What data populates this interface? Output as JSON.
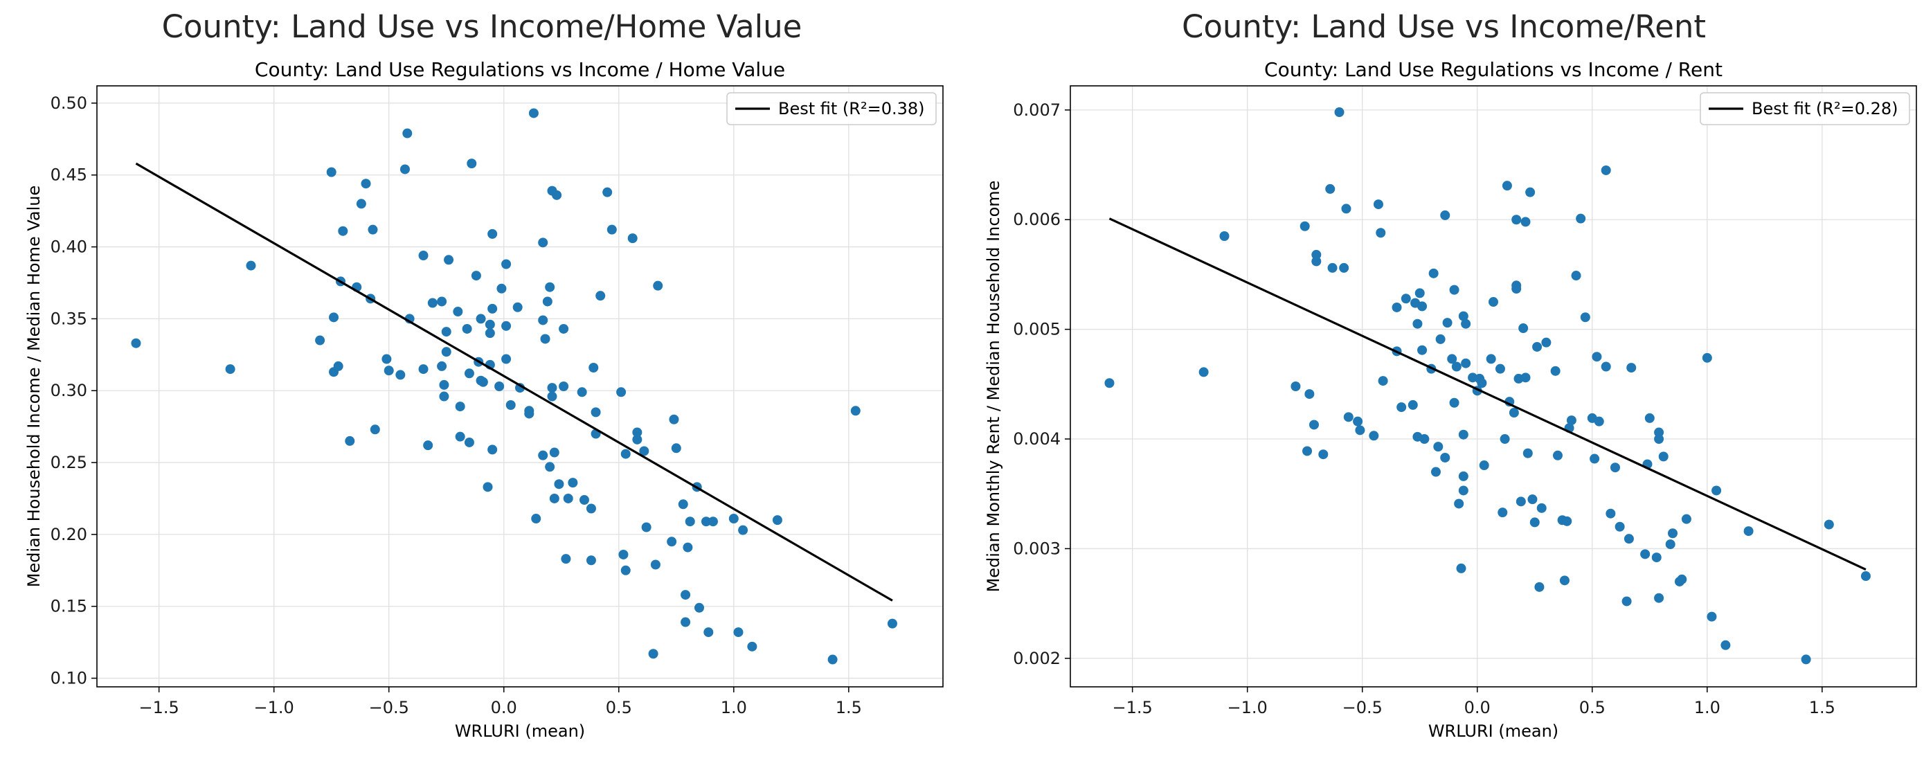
{
  "figure": {
    "suptitles": [
      "County: Land Use vs Income/Home Value",
      "County: Land Use vs Income/Rent"
    ]
  },
  "chart_data": [
    {
      "type": "scatter",
      "title": "County: Land Use Regulations vs Income / Home Value",
      "xlabel": "WRLURI (mean)",
      "ylabel": "Median Household Income / Median Home Value",
      "xlim": [
        -1.77,
        1.91
      ],
      "ylim": [
        0.094,
        0.512
      ],
      "xticks": [
        -1.5,
        -1.0,
        -0.5,
        0.0,
        0.5,
        1.0,
        1.5
      ],
      "xtick_labels": [
        "−1.5",
        "−1.0",
        "−0.5",
        "0.0",
        "0.5",
        "1.0",
        "1.5"
      ],
      "yticks": [
        0.1,
        0.15,
        0.2,
        0.25,
        0.3,
        0.35,
        0.4,
        0.45,
        0.5
      ],
      "ytick_labels": [
        "0.10",
        "0.15",
        "0.20",
        "0.25",
        "0.30",
        "0.35",
        "0.40",
        "0.45",
        "0.50"
      ],
      "grid": true,
      "legend": {
        "position": "top-right",
        "label": "Best fit (R²=0.38)"
      },
      "fit_line": {
        "x": [
          -1.6,
          1.69
        ],
        "y": [
          0.458,
          0.154
        ],
        "color": "#000000"
      },
      "marker_color": "#1f77b4",
      "points": [
        [
          -1.6,
          0.333
        ],
        [
          -1.19,
          0.315
        ],
        [
          -1.1,
          0.387
        ],
        [
          -0.8,
          0.335
        ],
        [
          -0.75,
          0.452
        ],
        [
          -0.74,
          0.351
        ],
        [
          -0.74,
          0.313
        ],
        [
          -0.72,
          0.317
        ],
        [
          -0.71,
          0.376
        ],
        [
          -0.7,
          0.411
        ],
        [
          -0.67,
          0.265
        ],
        [
          -0.64,
          0.372
        ],
        [
          -0.62,
          0.43
        ],
        [
          -0.6,
          0.444
        ],
        [
          -0.58,
          0.364
        ],
        [
          -0.57,
          0.412
        ],
        [
          -0.56,
          0.273
        ],
        [
          -0.51,
          0.322
        ],
        [
          -0.5,
          0.314
        ],
        [
          -0.45,
          0.311
        ],
        [
          -0.43,
          0.454
        ],
        [
          -0.42,
          0.479
        ],
        [
          -0.41,
          0.35
        ],
        [
          -0.35,
          0.394
        ],
        [
          -0.35,
          0.315
        ],
        [
          -0.33,
          0.262
        ],
        [
          -0.31,
          0.361
        ],
        [
          -0.27,
          0.362
        ],
        [
          -0.27,
          0.317
        ],
        [
          -0.26,
          0.304
        ],
        [
          -0.26,
          0.296
        ],
        [
          -0.25,
          0.341
        ],
        [
          -0.25,
          0.327
        ],
        [
          -0.24,
          0.391
        ],
        [
          -0.2,
          0.355
        ],
        [
          -0.19,
          0.289
        ],
        [
          -0.19,
          0.268
        ],
        [
          -0.16,
          0.343
        ],
        [
          -0.15,
          0.312
        ],
        [
          -0.15,
          0.264
        ],
        [
          -0.14,
          0.458
        ],
        [
          -0.12,
          0.38
        ],
        [
          -0.11,
          0.32
        ],
        [
          -0.1,
          0.35
        ],
        [
          -0.1,
          0.307
        ],
        [
          -0.09,
          0.306
        ],
        [
          -0.07,
          0.233
        ],
        [
          -0.06,
          0.318
        ],
        [
          -0.06,
          0.346
        ],
        [
          -0.06,
          0.34
        ],
        [
          -0.05,
          0.357
        ],
        [
          -0.05,
          0.409
        ],
        [
          -0.05,
          0.259
        ],
        [
          -0.02,
          0.303
        ],
        [
          -0.01,
          0.371
        ],
        [
          0.01,
          0.388
        ],
        [
          0.01,
          0.345
        ],
        [
          0.01,
          0.322
        ],
        [
          0.03,
          0.29
        ],
        [
          0.06,
          0.358
        ],
        [
          0.07,
          0.302
        ],
        [
          0.11,
          0.286
        ],
        [
          0.11,
          0.284
        ],
        [
          0.13,
          0.493
        ],
        [
          0.14,
          0.211
        ],
        [
          0.17,
          0.349
        ],
        [
          0.17,
          0.255
        ],
        [
          0.17,
          0.403
        ],
        [
          0.18,
          0.336
        ],
        [
          0.19,
          0.362
        ],
        [
          0.2,
          0.247
        ],
        [
          0.2,
          0.372
        ],
        [
          0.21,
          0.302
        ],
        [
          0.21,
          0.296
        ],
        [
          0.21,
          0.439
        ],
        [
          0.22,
          0.225
        ],
        [
          0.22,
          0.257
        ],
        [
          0.23,
          0.436
        ],
        [
          0.24,
          0.235
        ],
        [
          0.26,
          0.303
        ],
        [
          0.26,
          0.343
        ],
        [
          0.27,
          0.183
        ],
        [
          0.28,
          0.225
        ],
        [
          0.3,
          0.236
        ],
        [
          0.34,
          0.299
        ],
        [
          0.35,
          0.224
        ],
        [
          0.38,
          0.182
        ],
        [
          0.38,
          0.218
        ],
        [
          0.39,
          0.316
        ],
        [
          0.4,
          0.285
        ],
        [
          0.4,
          0.27
        ],
        [
          0.42,
          0.366
        ],
        [
          0.45,
          0.438
        ],
        [
          0.47,
          0.412
        ],
        [
          0.51,
          0.299
        ],
        [
          0.52,
          0.186
        ],
        [
          0.53,
          0.175
        ],
        [
          0.53,
          0.256
        ],
        [
          0.56,
          0.406
        ],
        [
          0.58,
          0.266
        ],
        [
          0.58,
          0.271
        ],
        [
          0.61,
          0.258
        ],
        [
          0.62,
          0.205
        ],
        [
          0.65,
          0.117
        ],
        [
          0.66,
          0.179
        ],
        [
          0.67,
          0.373
        ],
        [
          0.73,
          0.195
        ],
        [
          0.74,
          0.28
        ],
        [
          0.75,
          0.26
        ],
        [
          0.78,
          0.221
        ],
        [
          0.79,
          0.158
        ],
        [
          0.79,
          0.139
        ],
        [
          0.8,
          0.191
        ],
        [
          0.81,
          0.209
        ],
        [
          0.84,
          0.233
        ],
        [
          0.85,
          0.149
        ],
        [
          0.88,
          0.209
        ],
        [
          0.89,
          0.132
        ],
        [
          0.91,
          0.209
        ],
        [
          1.0,
          0.211
        ],
        [
          1.02,
          0.132
        ],
        [
          1.04,
          0.203
        ],
        [
          1.08,
          0.122
        ],
        [
          1.19,
          0.21
        ],
        [
          1.43,
          0.113
        ],
        [
          1.53,
          0.286
        ],
        [
          1.69,
          0.138
        ]
      ]
    },
    {
      "type": "scatter",
      "title": "County: Land Use Regulations vs Income / Rent",
      "xlabel": "WRLURI (mean)",
      "ylabel": "Median Monthly Rent / Median Household Income",
      "xlim": [
        -1.77,
        1.91
      ],
      "ylim": [
        0.00174,
        0.00722
      ],
      "xticks": [
        -1.5,
        -1.0,
        -0.5,
        0.0,
        0.5,
        1.0,
        1.5
      ],
      "xtick_labels": [
        "−1.5",
        "−1.0",
        "−0.5",
        "0.0",
        "0.5",
        "1.0",
        "1.5"
      ],
      "yticks": [
        0.002,
        0.003,
        0.004,
        0.005,
        0.006,
        0.007
      ],
      "ytick_labels": [
        "0.002",
        "0.003",
        "0.004",
        "0.005",
        "0.006",
        "0.007"
      ],
      "grid": true,
      "legend": {
        "position": "top-right",
        "label": "Best fit (R²=0.28)"
      },
      "fit_line": {
        "x": [
          -1.6,
          1.69
        ],
        "y": [
          0.00601,
          0.00281
        ],
        "color": "#000000"
      },
      "marker_color": "#1f77b4",
      "points": [
        [
          -1.6,
          0.00451
        ],
        [
          -1.19,
          0.00461
        ],
        [
          -1.1,
          0.00585
        ],
        [
          -0.79,
          0.00448
        ],
        [
          -0.75,
          0.00594
        ],
        [
          -0.74,
          0.00389
        ],
        [
          -0.73,
          0.00441
        ],
        [
          -0.71,
          0.00413
        ],
        [
          -0.7,
          0.00562
        ],
        [
          -0.7,
          0.00568
        ],
        [
          -0.67,
          0.00386
        ],
        [
          -0.64,
          0.00628
        ],
        [
          -0.63,
          0.00556
        ],
        [
          -0.6,
          0.00698
        ],
        [
          -0.58,
          0.00556
        ],
        [
          -0.57,
          0.0061
        ],
        [
          -0.56,
          0.0042
        ],
        [
          -0.52,
          0.00416
        ],
        [
          -0.51,
          0.00408
        ],
        [
          -0.45,
          0.00403
        ],
        [
          -0.43,
          0.00614
        ],
        [
          -0.42,
          0.00588
        ],
        [
          -0.41,
          0.00453
        ],
        [
          -0.35,
          0.0052
        ],
        [
          -0.35,
          0.0048
        ],
        [
          -0.33,
          0.00429
        ],
        [
          -0.31,
          0.00528
        ],
        [
          -0.28,
          0.00431
        ],
        [
          -0.27,
          0.00524
        ],
        [
          -0.26,
          0.00505
        ],
        [
          -0.26,
          0.00402
        ],
        [
          -0.25,
          0.00533
        ],
        [
          -0.24,
          0.00521
        ],
        [
          -0.24,
          0.00481
        ],
        [
          -0.23,
          0.004
        ],
        [
          -0.2,
          0.00464
        ],
        [
          -0.19,
          0.00551
        ],
        [
          -0.18,
          0.0037
        ],
        [
          -0.17,
          0.00393
        ],
        [
          -0.16,
          0.00491
        ],
        [
          -0.14,
          0.00383
        ],
        [
          -0.14,
          0.00604
        ],
        [
          -0.13,
          0.00506
        ],
        [
          -0.11,
          0.00473
        ],
        [
          -0.1,
          0.00433
        ],
        [
          -0.1,
          0.00536
        ],
        [
          -0.09,
          0.00466
        ],
        [
          -0.08,
          0.00341
        ],
        [
          -0.07,
          0.00282
        ],
        [
          -0.06,
          0.00404
        ],
        [
          -0.06,
          0.00366
        ],
        [
          -0.06,
          0.00353
        ],
        [
          -0.06,
          0.00512
        ],
        [
          -0.05,
          0.00505
        ],
        [
          -0.05,
          0.00469
        ],
        [
          -0.02,
          0.00456
        ],
        [
          0.0,
          0.00444
        ],
        [
          0.01,
          0.00455
        ],
        [
          0.02,
          0.00451
        ],
        [
          0.03,
          0.00376
        ],
        [
          0.06,
          0.00473
        ],
        [
          0.07,
          0.00525
        ],
        [
          0.1,
          0.00464
        ],
        [
          0.11,
          0.00333
        ],
        [
          0.12,
          0.004
        ],
        [
          0.13,
          0.00631
        ],
        [
          0.14,
          0.00434
        ],
        [
          0.16,
          0.00424
        ],
        [
          0.17,
          0.0054
        ],
        [
          0.17,
          0.00537
        ],
        [
          0.17,
          0.006
        ],
        [
          0.18,
          0.00455
        ],
        [
          0.19,
          0.00343
        ],
        [
          0.2,
          0.00501
        ],
        [
          0.21,
          0.00598
        ],
        [
          0.21,
          0.00456
        ],
        [
          0.22,
          0.00387
        ],
        [
          0.23,
          0.00625
        ],
        [
          0.24,
          0.00345
        ],
        [
          0.25,
          0.00324
        ],
        [
          0.26,
          0.00484
        ],
        [
          0.27,
          0.00265
        ],
        [
          0.28,
          0.00337
        ],
        [
          0.3,
          0.00488
        ],
        [
          0.34,
          0.00462
        ],
        [
          0.35,
          0.00385
        ],
        [
          0.37,
          0.00326
        ],
        [
          0.38,
          0.00271
        ],
        [
          0.39,
          0.00325
        ],
        [
          0.4,
          0.0041
        ],
        [
          0.41,
          0.00417
        ],
        [
          0.43,
          0.00549
        ],
        [
          0.45,
          0.00601
        ],
        [
          0.47,
          0.00511
        ],
        [
          0.5,
          0.00419
        ],
        [
          0.51,
          0.00382
        ],
        [
          0.52,
          0.00475
        ],
        [
          0.53,
          0.00416
        ],
        [
          0.56,
          0.00645
        ],
        [
          0.56,
          0.00466
        ],
        [
          0.58,
          0.00332
        ],
        [
          0.6,
          0.00374
        ],
        [
          0.62,
          0.0032
        ],
        [
          0.65,
          0.00252
        ],
        [
          0.66,
          0.00309
        ],
        [
          0.67,
          0.00465
        ],
        [
          0.73,
          0.00295
        ],
        [
          0.74,
          0.00377
        ],
        [
          0.75,
          0.00419
        ],
        [
          0.78,
          0.00292
        ],
        [
          0.79,
          0.00255
        ],
        [
          0.79,
          0.00406
        ],
        [
          0.79,
          0.004
        ],
        [
          0.81,
          0.00384
        ],
        [
          0.84,
          0.00304
        ],
        [
          0.85,
          0.00314
        ],
        [
          0.88,
          0.0027
        ],
        [
          0.89,
          0.00272
        ],
        [
          0.91,
          0.00327
        ],
        [
          1.0,
          0.00474
        ],
        [
          1.02,
          0.00238
        ],
        [
          1.04,
          0.00353
        ],
        [
          1.08,
          0.00212
        ],
        [
          1.18,
          0.00316
        ],
        [
          1.43,
          0.00199
        ],
        [
          1.53,
          0.00322
        ],
        [
          1.69,
          0.00275
        ]
      ]
    }
  ]
}
